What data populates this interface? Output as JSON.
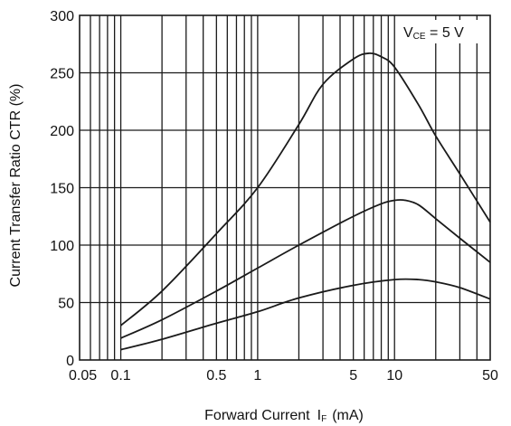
{
  "chart_data": {
    "type": "line",
    "title": "",
    "xlabel": "Forward Current",
    "xlabel_symbol": "I",
    "xlabel_subscript": "F",
    "xlabel_unit": "(mA)",
    "ylabel": "Current Transfer Ratio  CTR (%)",
    "condition": {
      "main": "V",
      "sub": "CE",
      "rest": " = 5 V"
    },
    "xscale": "log",
    "xlim": [
      0.05,
      50
    ],
    "ylim": [
      0,
      300
    ],
    "grid": true,
    "legend": "none",
    "x_ticks": [
      0.05,
      0.1,
      0.5,
      1,
      5,
      10,
      50
    ],
    "x_tick_labels": [
      "0.05",
      "0.1",
      "0.5",
      "1",
      "5",
      "10",
      "50"
    ],
    "y_ticks": [
      0,
      50,
      100,
      150,
      200,
      250,
      300
    ],
    "y_tick_labels": [
      "0",
      "50",
      "100",
      "150",
      "200",
      "250",
      "300"
    ],
    "series": [
      {
        "x": [
          0.1,
          0.2,
          0.5,
          1,
          2,
          3,
          5,
          6.5,
          8,
          10,
          15,
          20,
          30,
          50
        ],
        "values": [
          30,
          60,
          110,
          150,
          205,
          240,
          262,
          267,
          264,
          255,
          222,
          195,
          162,
          120
        ]
      },
      {
        "x": [
          0.1,
          0.2,
          0.5,
          1,
          2,
          5,
          8,
          10,
          12,
          15,
          20,
          30,
          50
        ],
        "values": [
          19,
          35,
          60,
          80,
          100,
          125,
          136,
          139,
          139,
          135,
          123,
          106,
          85
        ]
      },
      {
        "x": [
          0.1,
          0.2,
          0.5,
          1,
          2,
          5,
          10,
          15,
          20,
          30,
          50
        ],
        "values": [
          9,
          18,
          32,
          42,
          54,
          65,
          70,
          70,
          68,
          63,
          53
        ]
      }
    ]
  },
  "colors": {
    "line": "#1a1a1a",
    "grid": "#1a1a1a",
    "background": "#ffffff"
  }
}
